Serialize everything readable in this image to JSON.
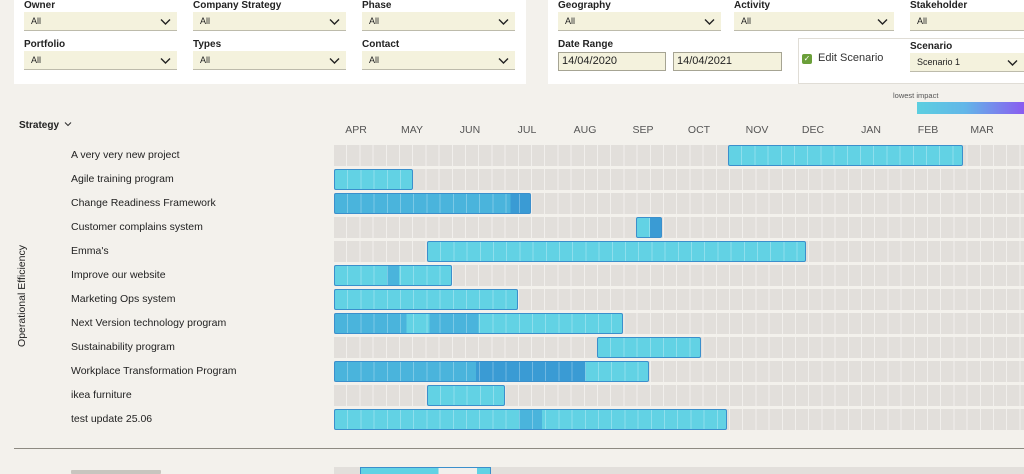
{
  "filters": {
    "owner": {
      "label": "Owner",
      "value": "All"
    },
    "company_strategy": {
      "label": "Company Strategy",
      "value": "All"
    },
    "phase": {
      "label": "Phase",
      "value": "All"
    },
    "portfolio": {
      "label": "Portfolio",
      "value": "All"
    },
    "types": {
      "label": "Types",
      "value": "All"
    },
    "contact": {
      "label": "Contact",
      "value": "All"
    },
    "geography": {
      "label": "Geography",
      "value": "All"
    },
    "activity": {
      "label": "Activity",
      "value": "All"
    },
    "stakeholder": {
      "label": "Stakeholder",
      "value": "All"
    },
    "date_range": {
      "label": "Date Range",
      "start": "14/04/2020",
      "end": "14/04/2021"
    },
    "edit_scenario": {
      "label": "Edit Scenario",
      "checked": true
    },
    "scenario": {
      "label": "Scenario",
      "value": "Scenario 1"
    }
  },
  "legend": {
    "label": "lowest impact",
    "low_color": "#5ccfe0",
    "high_color": "#8a5cf0"
  },
  "gantt": {
    "group_by_label": "Strategy",
    "group_name": "Operational Efficiency",
    "months": [
      "APR",
      "MAY",
      "JUN",
      "JUL",
      "AUG",
      "SEP",
      "OCT",
      "NOV",
      "DEC",
      "JAN",
      "FEB",
      "MAR"
    ],
    "rows": [
      {
        "name": "A very very new project"
      },
      {
        "name": "Agile training program"
      },
      {
        "name": "Change Readiness Framework"
      },
      {
        "name": "Customer complains system"
      },
      {
        "name": "Emma's"
      },
      {
        "name": "Improve our website"
      },
      {
        "name": "Marketing Ops system"
      },
      {
        "name": "Next Version technology program"
      },
      {
        "name": "Sustainability program"
      },
      {
        "name": "Workplace Transformation Program"
      },
      {
        "name": "ikea furniture"
      },
      {
        "name": "test update 25.06"
      }
    ]
  },
  "colors": {
    "bar_light": "#62d2e4",
    "bar_medium": "#4ab4dc",
    "bar_dark": "#3a9bd4",
    "bar_border": "#3b8fcc",
    "track": "#e2dfdb",
    "track_cell_line": "#f1efec"
  }
}
